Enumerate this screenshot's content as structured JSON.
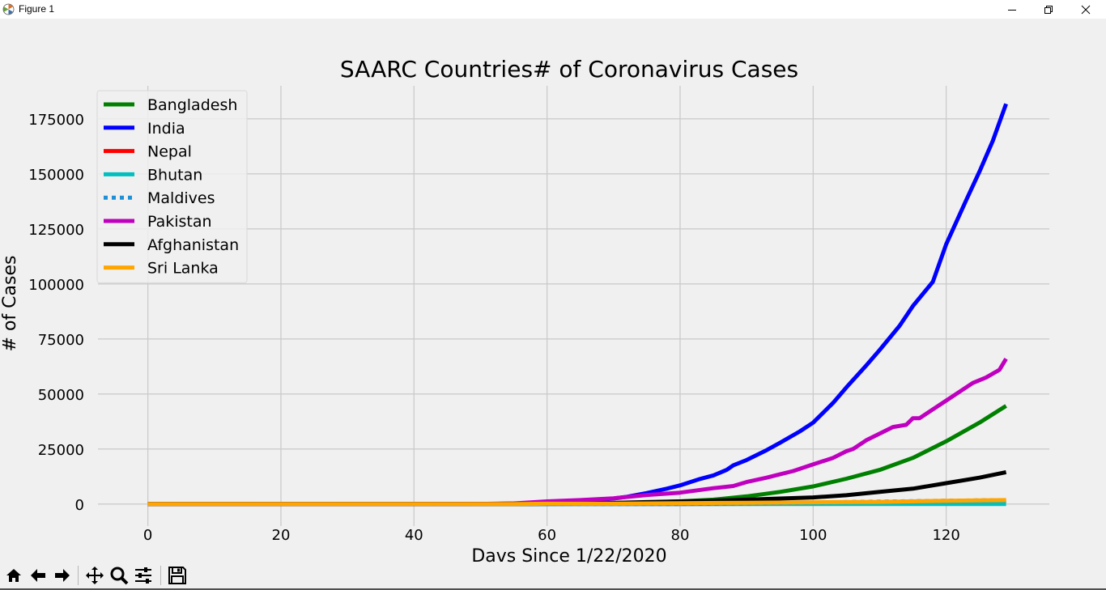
{
  "window": {
    "title": "Figure 1"
  },
  "toolbar": {
    "buttons": [
      "home-icon",
      "back-arrow-icon",
      "forward-arrow-icon",
      "pan-icon",
      "zoom-icon",
      "configure-subplots-icon",
      "save-icon"
    ]
  },
  "chart_data": {
    "type": "line",
    "title": "SAARC Countries# of Coronavirus Cases",
    "xlabel": "Davs Since 1/22/2020",
    "ylabel": "# of Cases",
    "xlim": [
      -7.5,
      135.5
    ],
    "ylim": [
      -10000,
      190000
    ],
    "xticks": [
      0,
      20,
      40,
      60,
      80,
      100,
      120
    ],
    "yticks": [
      0,
      25000,
      50000,
      75000,
      100000,
      125000,
      150000,
      175000
    ],
    "grid": true,
    "legend_position": "upper-left",
    "background_color": "#f0f0f0",
    "grid_color": "#cbcbcb",
    "series": [
      {
        "name": "Bangladesh",
        "color": "#008000",
        "dash": false,
        "x": [
          0,
          45,
          55,
          60,
          65,
          70,
          75,
          80,
          85,
          90,
          95,
          100,
          105,
          110,
          115,
          120,
          125,
          129
        ],
        "y": [
          0,
          3,
          27,
          50,
          120,
          300,
          700,
          1200,
          2000,
          3500,
          5500,
          8000,
          11500,
          15500,
          21000,
          28500,
          37000,
          44600
        ]
      },
      {
        "name": "India",
        "color": "#0000ff",
        "dash": false,
        "x": [
          0,
          40,
          50,
          55,
          60,
          65,
          70,
          72,
          75,
          78,
          80,
          83,
          85,
          87,
          88,
          90,
          93,
          95,
          98,
          100,
          103,
          105,
          108,
          110,
          113,
          115,
          118,
          120,
          123,
          125,
          127,
          129
        ],
        "y": [
          0,
          3,
          50,
          200,
          600,
          1300,
          2500,
          3300,
          5000,
          7000,
          8500,
          11400,
          13000,
          15500,
          17600,
          20000,
          24500,
          27800,
          33000,
          37000,
          46000,
          53000,
          63000,
          70000,
          81000,
          90000,
          101000,
          118000,
          138000,
          151000,
          165000,
          181800
        ]
      },
      {
        "name": "Nepal",
        "color": "#ff0000",
        "dash": false,
        "x": [
          0,
          60,
          80,
          100,
          110,
          120,
          129
        ],
        "y": [
          0,
          5,
          50,
          150,
          400,
          900,
          1500
        ]
      },
      {
        "name": "Bhutan",
        "color": "#00bfbf",
        "dash": false,
        "x": [
          0,
          129
        ],
        "y": [
          0,
          30
        ]
      },
      {
        "name": "Maldives",
        "color": "#1f8fd6",
        "dash": true,
        "x": [
          0,
          60,
          80,
          90,
          100,
          110,
          120,
          129
        ],
        "y": [
          0,
          20,
          40,
          300,
          700,
          1100,
          1500,
          1800
        ]
      },
      {
        "name": "Pakistan",
        "color": "#bf00bf",
        "dash": false,
        "x": [
          0,
          40,
          50,
          55,
          60,
          65,
          70,
          75,
          80,
          85,
          88,
          90,
          93,
          95,
          97,
          100,
          103,
          105,
          106,
          108,
          110,
          112,
          114,
          115,
          116,
          118,
          120,
          122,
          124,
          126,
          128,
          129
        ],
        "y": [
          0,
          5,
          60,
          300,
          1200,
          1800,
          2600,
          4100,
          5200,
          7200,
          8200,
          10000,
          12000,
          13500,
          15000,
          18000,
          21000,
          24000,
          25000,
          29000,
          32000,
          35000,
          36000,
          39000,
          39000,
          43000,
          47000,
          51000,
          55000,
          57500,
          61000,
          66000
        ]
      },
      {
        "name": "Afghanistan",
        "color": "#000000",
        "dash": false,
        "x": [
          0,
          40,
          55,
          60,
          65,
          70,
          75,
          80,
          85,
          90,
          95,
          100,
          105,
          110,
          115,
          120,
          125,
          129
        ],
        "y": [
          0,
          5,
          40,
          100,
          250,
          500,
          900,
          1200,
          1500,
          2000,
          2500,
          3000,
          4000,
          5500,
          7000,
          9500,
          12000,
          14500
        ]
      },
      {
        "name": "Sri Lanka",
        "color": "#ffa500",
        "dash": false,
        "x": [
          0,
          40,
          55,
          60,
          70,
          80,
          90,
          100,
          110,
          120,
          129
        ],
        "y": [
          0,
          2,
          50,
          150,
          200,
          400,
          600,
          800,
          1000,
          1500,
          1800
        ]
      }
    ]
  }
}
